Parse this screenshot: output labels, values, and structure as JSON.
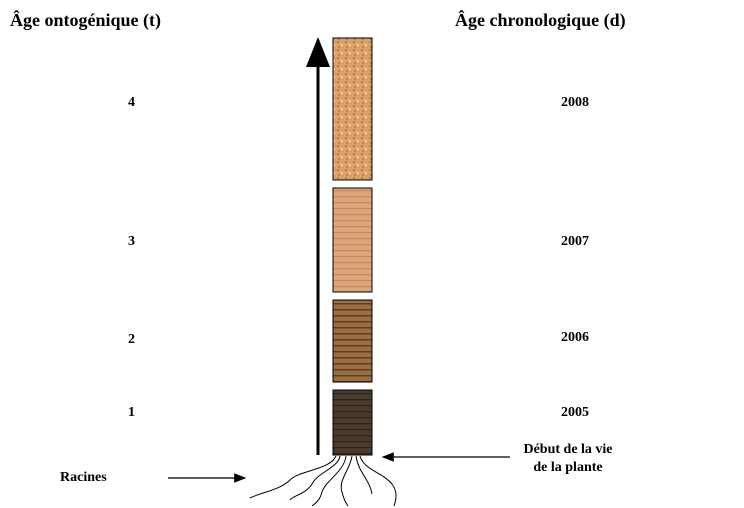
{
  "header": {
    "left": "Âge ontogénique (t)",
    "right": "Âge chronologique (d)"
  },
  "levels": [
    {
      "ontogenic": "4",
      "chronological": "2008"
    },
    {
      "ontogenic": "3",
      "chronological": "2007"
    },
    {
      "ontogenic": "2",
      "chronological": "2006"
    },
    {
      "ontogenic": "1",
      "chronological": "2005"
    }
  ],
  "annotations": {
    "roots": "Racines",
    "start": [
      "Début de la vie",
      "de la plante"
    ]
  }
}
